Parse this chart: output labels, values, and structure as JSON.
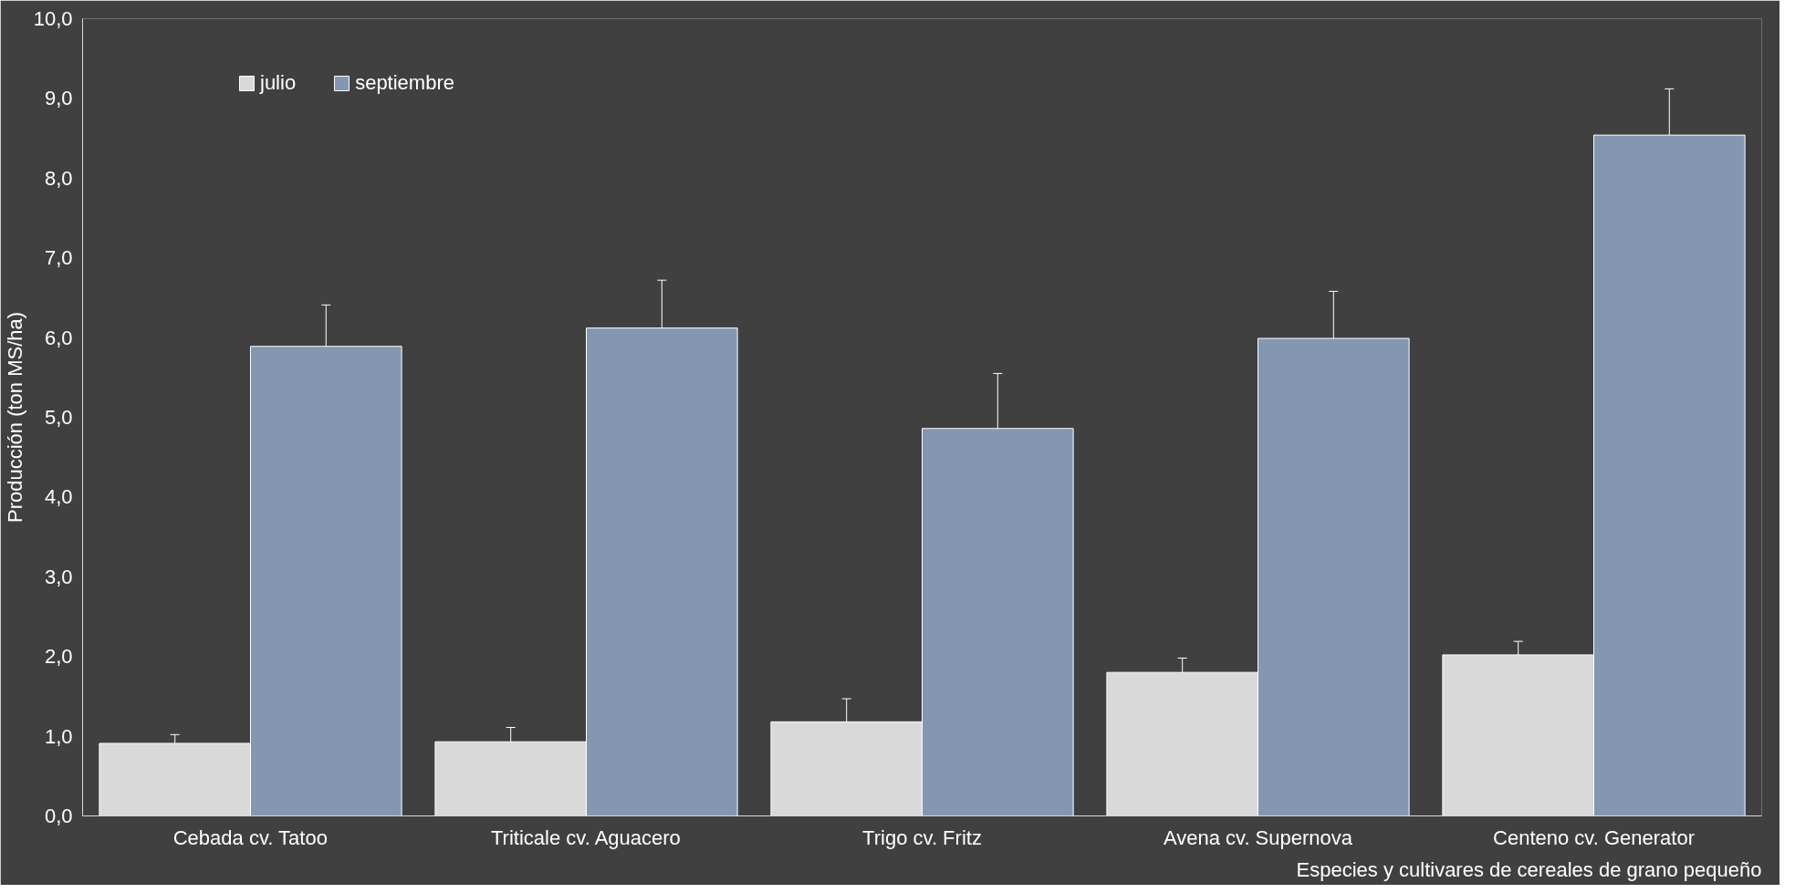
{
  "chart_data": {
    "type": "bar",
    "xlabel": "Especies y cultivares de cereales de grano pequeño",
    "ylabel": "Producción (ton MS/ha)",
    "categories": [
      "Cebada cv. Tatoo",
      "Triticale cv. Aguacero",
      "Trigo cv. Fritz",
      "Avena cv. Supernova",
      "Centeno cv. Generator"
    ],
    "series": [
      {
        "name": "julio",
        "color": "#d9d9d9",
        "values": [
          0.91,
          0.93,
          1.18,
          1.8,
          2.02
        ],
        "errors": [
          0.11,
          0.18,
          0.29,
          0.18,
          0.17
        ]
      },
      {
        "name": "septiembre",
        "color": "#8497b0",
        "values": [
          5.89,
          6.12,
          4.86,
          5.99,
          8.54
        ],
        "errors": [
          0.52,
          0.6,
          0.69,
          0.59,
          0.58
        ]
      }
    ],
    "ylim": [
      0,
      10
    ],
    "yticks": [
      {
        "value": 0,
        "label": "0,0"
      },
      {
        "value": 1,
        "label": "1,0"
      },
      {
        "value": 2,
        "label": "2,0"
      },
      {
        "value": 3,
        "label": "3,0"
      },
      {
        "value": 4,
        "label": "4,0"
      },
      {
        "value": 5,
        "label": "5,0"
      },
      {
        "value": 6,
        "label": "6,0"
      },
      {
        "value": 7,
        "label": "7,0"
      },
      {
        "value": 8,
        "label": "8,0"
      },
      {
        "value": 9,
        "label": "9,0"
      },
      {
        "value": 10,
        "label": "10,0"
      }
    ],
    "grid": false,
    "legend": "top left"
  }
}
